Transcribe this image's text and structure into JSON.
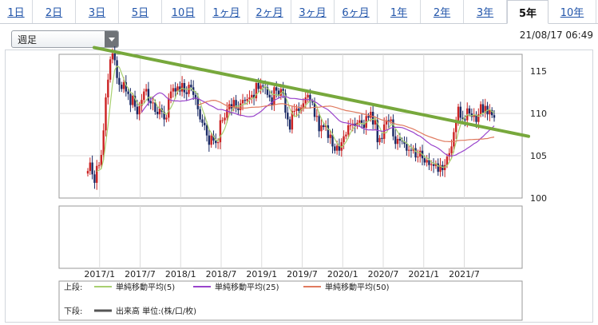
{
  "tabs": [
    {
      "label": "1日"
    },
    {
      "label": "2日"
    },
    {
      "label": "3日"
    },
    {
      "label": "5日"
    },
    {
      "label": "10日"
    },
    {
      "label": "1ヶ月"
    },
    {
      "label": "2ヶ月"
    },
    {
      "label": "3ヶ月"
    },
    {
      "label": "6ヶ月"
    },
    {
      "label": "1年"
    },
    {
      "label": "2年"
    },
    {
      "label": "3年"
    },
    {
      "label": "5年"
    },
    {
      "label": "10年"
    }
  ],
  "active_tab": "5年",
  "period_select": {
    "value": "週足",
    "icon": "chevron-down-icon"
  },
  "timestamp": "21/08/17 06:49",
  "colors": {
    "up": "#cc2222",
    "down": "#1a2a66",
    "ma5": "#a8d070",
    "ma25": "#9944cc",
    "ma50": "#e07a5f",
    "trendline": "#77a83c",
    "grid": "#dcdcdc",
    "link": "#2255aa"
  },
  "chart_data": {
    "type": "candlestick",
    "title": "",
    "xlabel": "",
    "ylabel": "",
    "ylim": [
      100,
      117
    ],
    "y_ticks": [
      "115",
      "110",
      "105",
      "100"
    ],
    "x_ticks": [
      "2017/1",
      "2017/7",
      "2018/1",
      "2018/7",
      "2019/1",
      "2019/7",
      "2020/1",
      "2020/7",
      "2021/1",
      "2021/7"
    ],
    "price_closes": [
      103.2,
      104.2,
      102.8,
      101.8,
      103.8,
      103.9,
      105.1,
      108.0,
      111.9,
      114.0,
      116.4,
      117.1,
      116.3,
      114.2,
      113.4,
      112.9,
      113.7,
      112.6,
      112.3,
      111.0,
      112.1,
      110.8,
      109.9,
      110.9,
      111.6,
      112.6,
      112.9,
      111.5,
      111.2,
      111.3,
      110.2,
      109.9,
      110.6,
      110.2,
      109.3,
      109.5,
      111.8,
      112.6,
      113.0,
      112.6,
      113.2,
      112.6,
      113.6,
      112.5,
      112.3,
      113.4,
      113.1,
      112.2,
      111.7,
      110.5,
      109.3,
      108.9,
      108.6,
      107.4,
      106.3,
      107.4,
      106.8,
      106.5,
      106.6,
      109.2,
      109.2,
      109.5,
      110.5,
      111.1,
      110.6,
      111.6,
      110.6,
      110.4,
      111.2,
      111.6,
      111.5,
      111.7,
      111.9,
      112.2,
      111.8,
      113.6,
      112.9,
      113.3,
      113.2,
      113.1,
      112.2,
      111.9,
      111.0,
      113.1,
      112.7,
      112.1,
      112.9,
      112.4,
      110.1,
      109.3,
      108.1,
      110.3,
      110.3,
      110.6,
      110.3,
      110.7,
      111.2,
      111.9,
      112.2,
      111.4,
      111.3,
      109.6,
      109.7,
      107.9,
      108.6,
      108.4,
      108.6,
      107.1,
      107.5,
      106.1,
      105.6,
      106.2,
      105.6,
      106.6,
      107.3,
      107.5,
      108.6,
      108.6,
      108.8,
      108.5,
      108.9,
      109.2,
      108.8,
      108.3,
      109.7,
      109.5,
      110.2,
      108.7,
      109.2,
      106.6,
      107.1,
      107.0,
      108.7,
      109.2,
      109.1,
      109.3,
      107.3,
      106.4,
      107.0,
      106.8,
      106.7,
      106.4,
      105.6,
      105.7,
      105.6,
      105.9,
      104.8,
      104.9,
      105.6,
      104.7,
      104.2,
      104.5,
      103.9,
      104.0,
      103.8,
      104.1,
      103.1,
      103.9,
      103.3,
      103.9,
      104.9,
      105.3,
      106.1,
      107.8,
      108.9,
      110.8,
      109.5,
      109.3,
      109.2,
      110.6,
      110.0,
      109.6,
      109.8,
      109.0,
      109.9,
      111.1,
      110.1,
      110.9,
      109.9,
      110.4,
      109.8,
      109.5
    ],
    "series": [
      {
        "name": "単純移動平均(5)",
        "values": []
      },
      {
        "name": "単純移動平均(25)",
        "values": []
      },
      {
        "name": "単純移動平均(50)",
        "values": []
      }
    ],
    "trendline": {
      "start": {
        "x": "2016/11",
        "y": 117.8
      },
      "end": {
        "x": "2021/10",
        "y": 107.3
      }
    }
  },
  "legend": {
    "upper_label": "上段:",
    "lower_label": "下段:",
    "volume_text": "出来高 単位:(株/口/枚)"
  }
}
